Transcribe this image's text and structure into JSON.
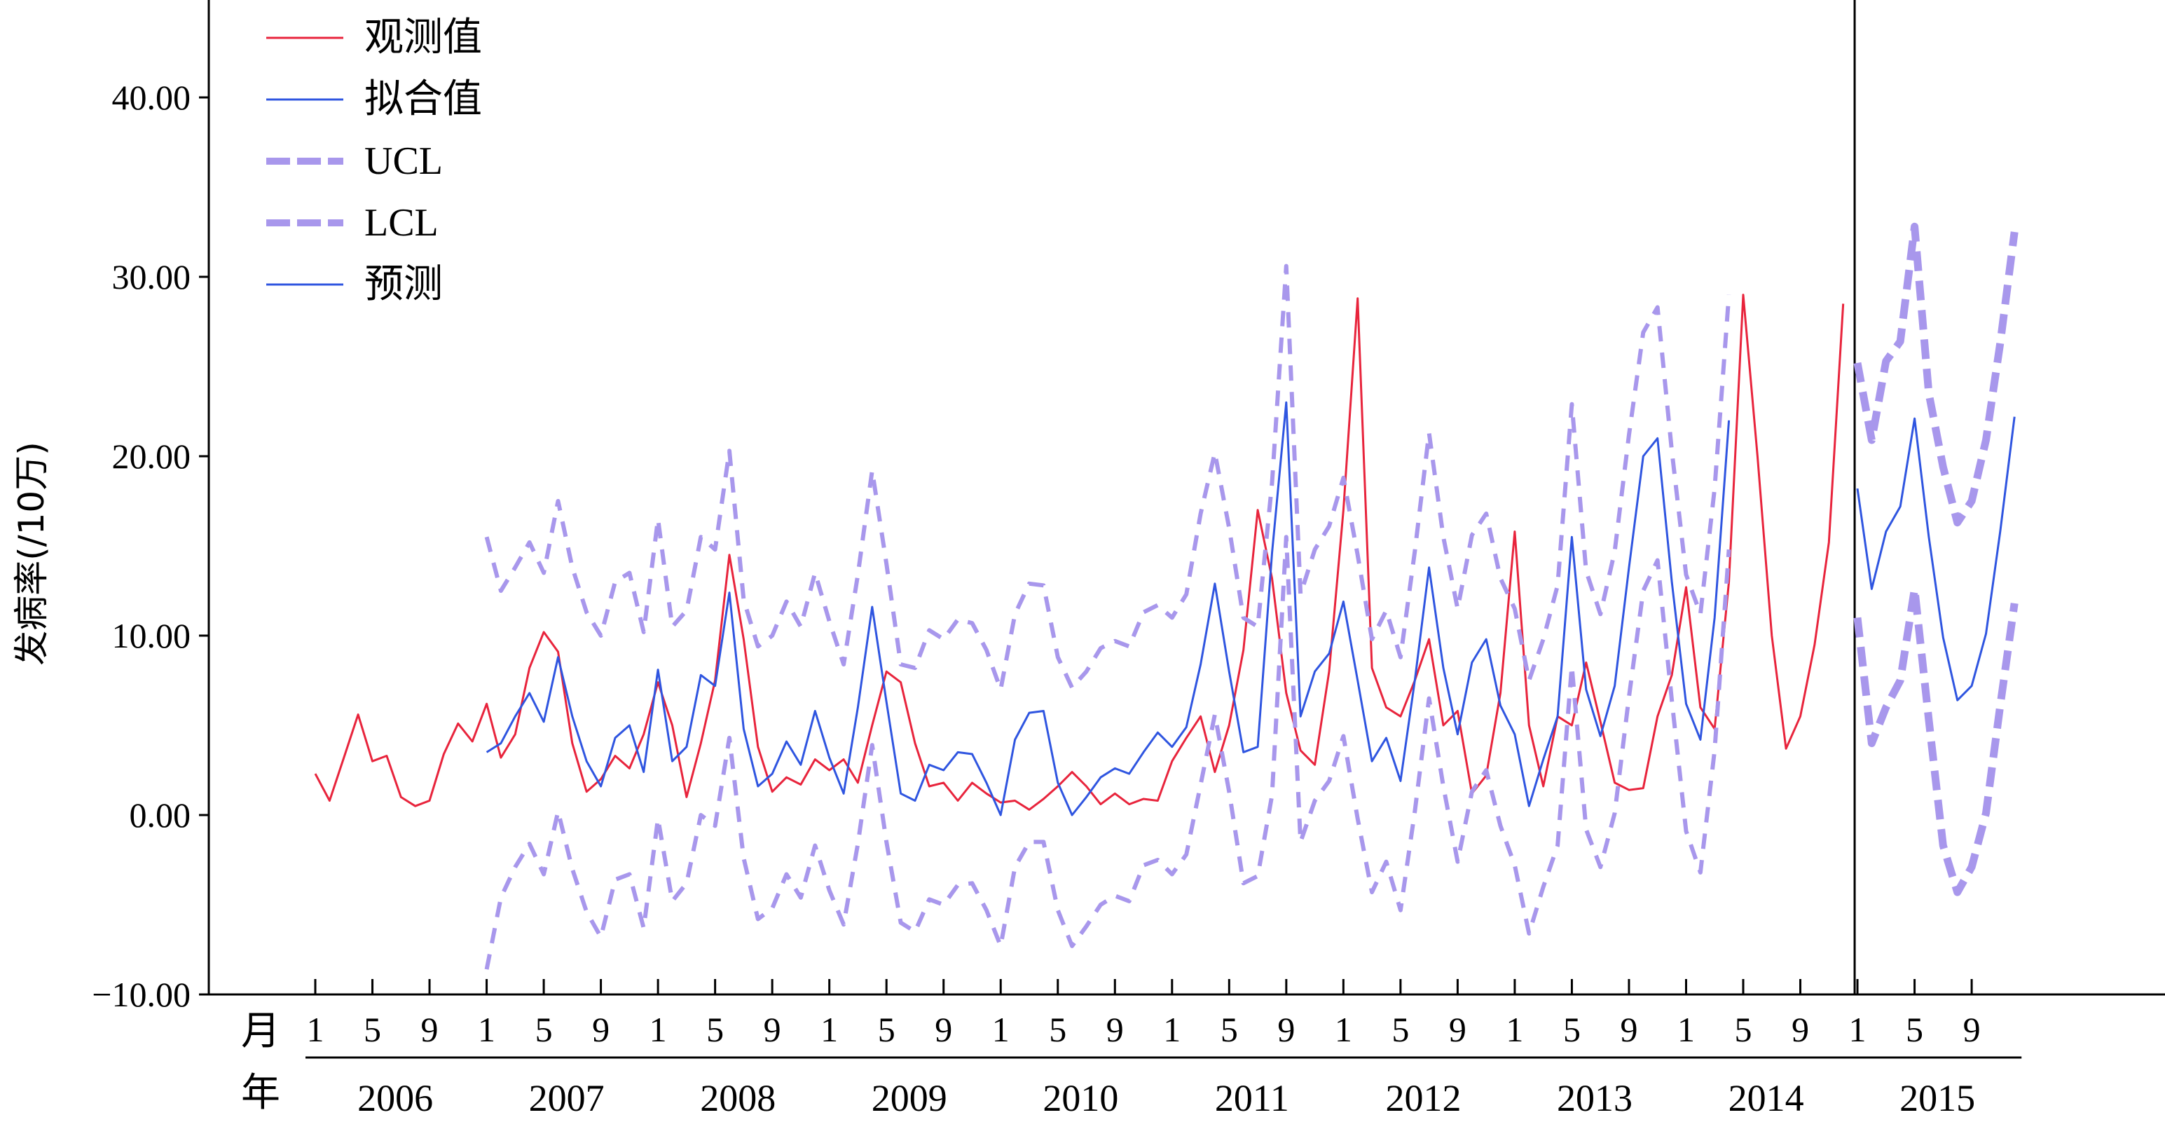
{
  "chart_data": {
    "type": "line",
    "ylabel": "发病率(/10万)",
    "y_ticks": [
      "40.00",
      "30.00",
      "20.00",
      "10.00",
      "0.00",
      "−10.00"
    ],
    "ylim": [
      -10,
      45
    ],
    "month_label": "月",
    "year_label": "年",
    "month_ticks": [
      "1",
      "5",
      "9"
    ],
    "years": [
      "2006",
      "2007",
      "2008",
      "2009",
      "2010",
      "2011",
      "2012",
      "2013",
      "2014",
      "2015"
    ],
    "x_unit": "month index (2006-01 = 0)",
    "forecast_divider_month": 108,
    "legend": [
      {
        "label": "观测值",
        "color": "#e8243c",
        "style": "solid"
      },
      {
        "label": "拟合值",
        "color": "#2f55e0",
        "style": "solid"
      },
      {
        "label": "UCL",
        "color": "#a897ec",
        "style": "dashed-thick"
      },
      {
        "label": "LCL",
        "color": "#a897ec",
        "style": "dashed-thick"
      },
      {
        "label": "预测",
        "color": "#2f55e0",
        "style": "solid"
      }
    ],
    "series": [
      {
        "name": "观测值",
        "start": 0,
        "color": "#e8243c",
        "dash": "",
        "width": 3,
        "values": [
          2.3,
          0.8,
          3.2,
          5.6,
          3.0,
          3.3,
          1.0,
          0.5,
          0.8,
          3.4,
          5.1,
          4.1,
          6.2,
          3.2,
          4.5,
          8.2,
          10.2,
          9.1,
          4.0,
          1.3,
          2.0,
          3.3,
          2.6,
          4.5,
          7.4,
          5.0,
          1.0,
          4.0,
          7.5,
          14.5,
          9.8,
          3.8,
          1.3,
          2.1,
          1.7,
          3.1,
          2.5,
          3.1,
          1.8,
          5.0,
          8.0,
          7.4,
          4.0,
          1.6,
          1.8,
          0.8,
          1.8,
          1.2,
          0.7,
          0.8,
          0.3,
          0.9,
          1.6,
          2.4,
          1.6,
          0.6,
          1.2,
          0.6,
          0.9,
          0.8,
          3.0,
          4.3,
          5.5,
          2.4,
          5.0,
          9.2,
          17.0,
          13.2,
          6.8,
          3.6,
          2.8,
          8.0,
          17.0,
          28.8,
          8.2,
          6.0,
          5.5,
          7.5,
          9.8,
          5.0,
          5.8,
          1.2,
          2.2,
          6.8,
          15.8,
          5.0,
          1.6,
          5.5,
          5.0,
          8.5,
          5.2,
          1.8,
          1.4,
          1.5,
          5.5,
          7.8,
          12.7,
          6.0,
          4.8,
          13.0,
          29.0,
          20.0,
          10.0,
          3.7,
          5.5,
          9.5,
          15.2,
          28.5
        ]
      },
      {
        "name": "拟合值",
        "start": 12,
        "color": "#2f55e0",
        "dash": "",
        "width": 3,
        "values": [
          3.5,
          4.0,
          5.5,
          6.8,
          5.2,
          8.8,
          5.5,
          3.0,
          1.6,
          4.3,
          5.0,
          2.4,
          8.1,
          3.0,
          3.8,
          7.8,
          7.2,
          12.4,
          4.8,
          1.6,
          2.3,
          4.1,
          2.8,
          5.8,
          3.2,
          1.2,
          6.0,
          11.6,
          6.3,
          1.2,
          0.8,
          2.8,
          2.5,
          3.5,
          3.4,
          1.8,
          0.0,
          4.2,
          5.7,
          5.8,
          1.8,
          0.0,
          1.0,
          2.1,
          2.6,
          2.3,
          3.5,
          4.6,
          3.8,
          4.9,
          8.4,
          12.9,
          8.0,
          3.5,
          3.8,
          14.6,
          23.0,
          5.5,
          8.0,
          9.0,
          11.9,
          7.5,
          3.0,
          4.3,
          1.9,
          7.5,
          13.8,
          8.2,
          4.5,
          8.5,
          9.8,
          6.1,
          4.5,
          0.5,
          3.1,
          5.5,
          15.5,
          7.0,
          4.4,
          7.2,
          13.8,
          20.0,
          21.0,
          13.0,
          6.2,
          4.2,
          11.0,
          22.0
        ]
      },
      {
        "name": "UCL",
        "start": 12,
        "color": "#a897ec",
        "dash": "22 16",
        "width": 6,
        "values": [
          15.5,
          12.5,
          13.8,
          15.2,
          13.5,
          17.5,
          13.8,
          11.3,
          10.0,
          13.0,
          13.5,
          10.2,
          16.5,
          10.5,
          11.4,
          15.5,
          14.8,
          20.3,
          12.0,
          9.4,
          10.0,
          11.9,
          10.5,
          13.5,
          10.8,
          8.4,
          13.4,
          19.2,
          14.0,
          8.4,
          8.2,
          10.3,
          9.8,
          10.9,
          10.7,
          9.2,
          7.0,
          11.2,
          12.9,
          12.8,
          8.8,
          7.1,
          8.0,
          9.3,
          9.7,
          9.4,
          11.3,
          11.7,
          11.0,
          12.3,
          16.8,
          20.2,
          16.0,
          11.0,
          10.5,
          18.5,
          30.6,
          12.3,
          14.8,
          16.1,
          18.8,
          14.5,
          9.8,
          11.4,
          8.8,
          14.7,
          21.3,
          15.5,
          11.5,
          15.6,
          16.8,
          13.2,
          11.5,
          7.5,
          9.8,
          12.8,
          22.9,
          13.6,
          11.2,
          14.7,
          21.2,
          26.9,
          28.3,
          20.3,
          13.4,
          11.2,
          18.2,
          29.0
        ]
      },
      {
        "name": "LCL",
        "start": 12,
        "color": "#a897ec",
        "dash": "22 16",
        "width": 6,
        "values": [
          -8.6,
          -4.6,
          -2.9,
          -1.6,
          -3.3,
          0.2,
          -3.0,
          -5.4,
          -6.8,
          -3.6,
          -3.3,
          -6.3,
          -0.2,
          -4.8,
          -3.8,
          0.0,
          -0.6,
          4.3,
          -2.4,
          -5.8,
          -5.2,
          -3.3,
          -4.6,
          -1.7,
          -4.2,
          -6.1,
          -1.6,
          3.9,
          -1.5,
          -6.0,
          -6.5,
          -4.7,
          -5.0,
          -3.9,
          -3.8,
          -5.3,
          -7.3,
          -2.9,
          -1.5,
          -1.5,
          -5.3,
          -7.3,
          -6.2,
          -5.0,
          -4.5,
          -4.8,
          -2.8,
          -2.5,
          -3.3,
          -2.2,
          1.7,
          5.6,
          1.3,
          -3.8,
          -3.4,
          1.1,
          15.5,
          -1.5,
          0.8,
          1.9,
          4.4,
          -0.2,
          -4.3,
          -2.6,
          -5.3,
          0.2,
          6.5,
          1.6,
          -2.6,
          1.3,
          2.5,
          -0.6,
          -2.8,
          -6.6,
          -4.0,
          -1.7,
          8.3,
          -0.8,
          -2.9,
          0.1,
          6.6,
          12.5,
          14.2,
          6.4,
          -0.9,
          -3.2,
          3.6,
          14.8
        ]
      },
      {
        "name": "预测",
        "start": 108,
        "color": "#2f55e0",
        "dash": "",
        "width": 3,
        "values": [
          18.2,
          12.6,
          15.8,
          17.2,
          22.1,
          15.5,
          9.9,
          6.4,
          7.2,
          10.1,
          15.8,
          22.2
        ]
      },
      {
        "name": "UCL",
        "start": 108,
        "color": "#a897ec",
        "dash": "28 14",
        "width": 11,
        "values": [
          25.2,
          20.9,
          25.3,
          26.4,
          32.8,
          23.5,
          19.4,
          16.3,
          17.5,
          20.9,
          26.3,
          32.5
        ]
      },
      {
        "name": "LCL",
        "start": 108,
        "color": "#a897ec",
        "dash": "28 14",
        "width": 11,
        "values": [
          11.0,
          4.0,
          6.0,
          7.5,
          12.6,
          5.3,
          -1.7,
          -4.3,
          -2.9,
          0.1,
          6.1,
          11.8
        ]
      }
    ]
  }
}
